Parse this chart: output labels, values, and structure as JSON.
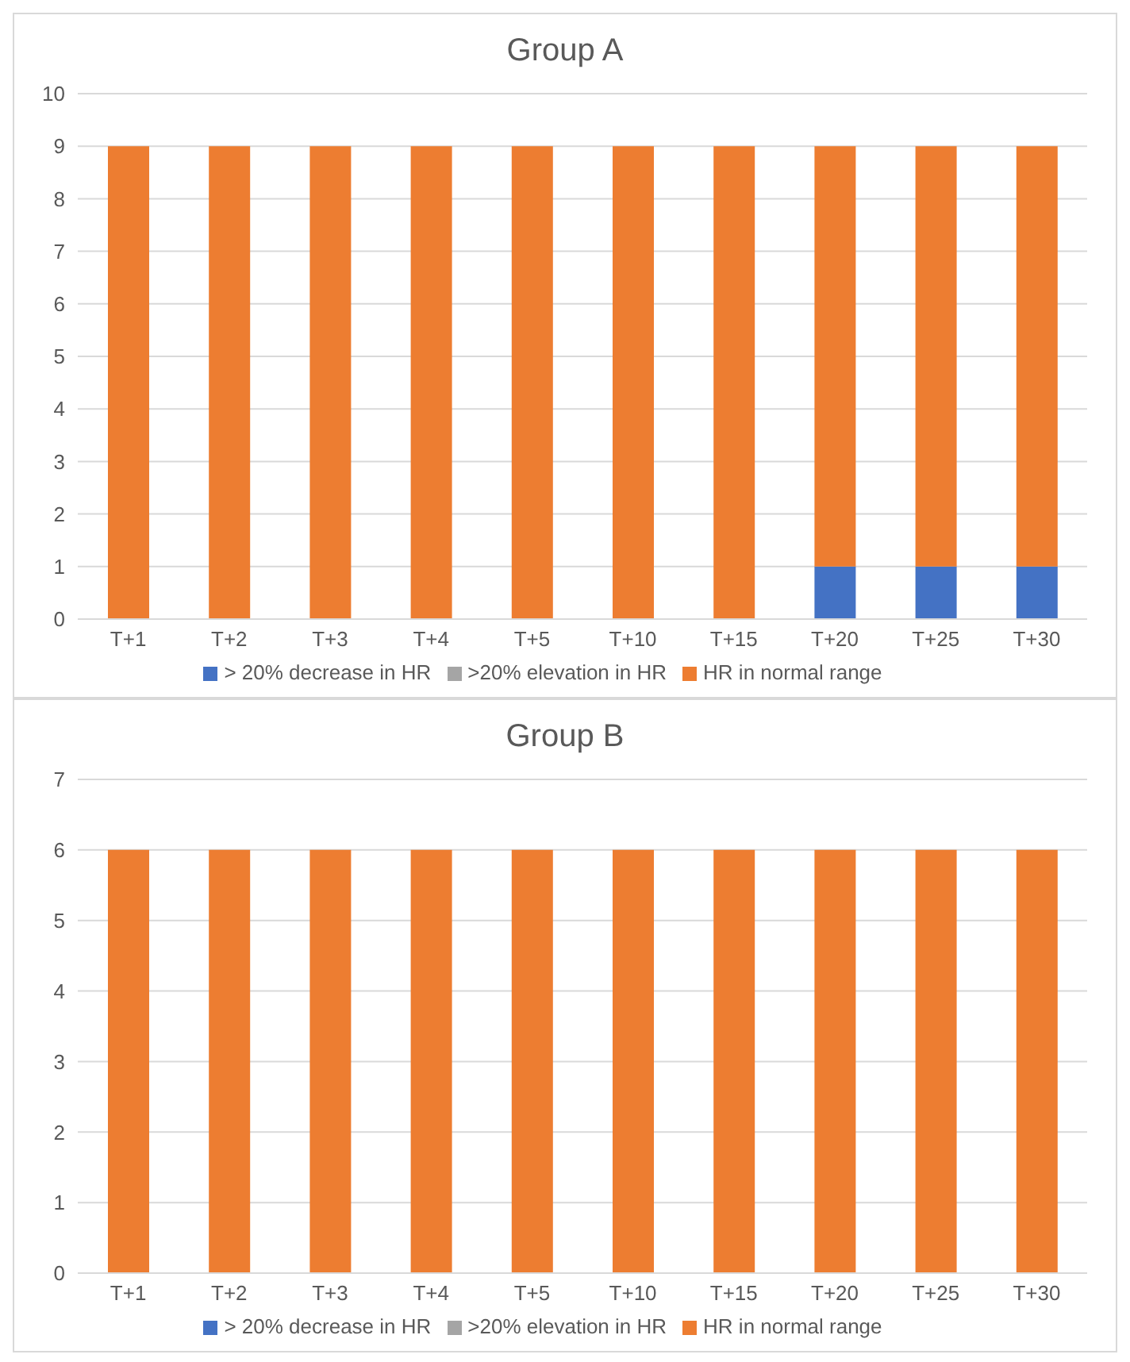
{
  "chart_data": [
    {
      "type": "bar",
      "title": "Group A",
      "categories": [
        "T+1",
        "T+2",
        "T+3",
        "T+4",
        "T+5",
        "T+10",
        "T+15",
        "T+20",
        "T+25",
        "T+30"
      ],
      "stacked": true,
      "ylim": [
        0,
        10
      ],
      "yticks": [
        0,
        1,
        2,
        3,
        4,
        5,
        6,
        7,
        8,
        9,
        10
      ],
      "grid": "y",
      "legend": "bottom",
      "series": [
        {
          "name": "> 20% decrease in HR",
          "color": "#4472c4",
          "values": [
            0,
            0,
            0,
            0,
            0,
            0,
            0,
            1,
            1,
            1
          ]
        },
        {
          "name": "HR in normal range",
          "color": "#ed7d31",
          "values": [
            9,
            9,
            9,
            9,
            9,
            9,
            9,
            8,
            8,
            8
          ]
        },
        {
          "name": ">20% elevation in HR",
          "color": "#a5a5a5",
          "values": [
            0,
            0,
            0,
            0,
            0,
            0,
            0,
            0,
            0,
            0
          ]
        }
      ]
    },
    {
      "type": "bar",
      "title": "Group B",
      "categories": [
        "T+1",
        "T+2",
        "T+3",
        "T+4",
        "T+5",
        "T+10",
        "T+15",
        "T+20",
        "T+25",
        "T+30"
      ],
      "stacked": true,
      "ylim": [
        0,
        7
      ],
      "yticks": [
        0,
        1,
        2,
        3,
        4,
        5,
        6,
        7
      ],
      "grid": "y",
      "legend": "bottom",
      "series": [
        {
          "name": "> 20% decrease in HR",
          "color": "#4472c4",
          "values": [
            0,
            0,
            0,
            0,
            0,
            0,
            0,
            0,
            0,
            0
          ]
        },
        {
          "name": "HR in normal range",
          "color": "#ed7d31",
          "values": [
            6,
            6,
            6,
            6,
            6,
            6,
            6,
            6,
            6,
            6
          ]
        },
        {
          "name": ">20% elevation in HR",
          "color": "#a5a5a5",
          "values": [
            0,
            0,
            0,
            0,
            0,
            0,
            0,
            0,
            0,
            0
          ]
        }
      ]
    }
  ]
}
